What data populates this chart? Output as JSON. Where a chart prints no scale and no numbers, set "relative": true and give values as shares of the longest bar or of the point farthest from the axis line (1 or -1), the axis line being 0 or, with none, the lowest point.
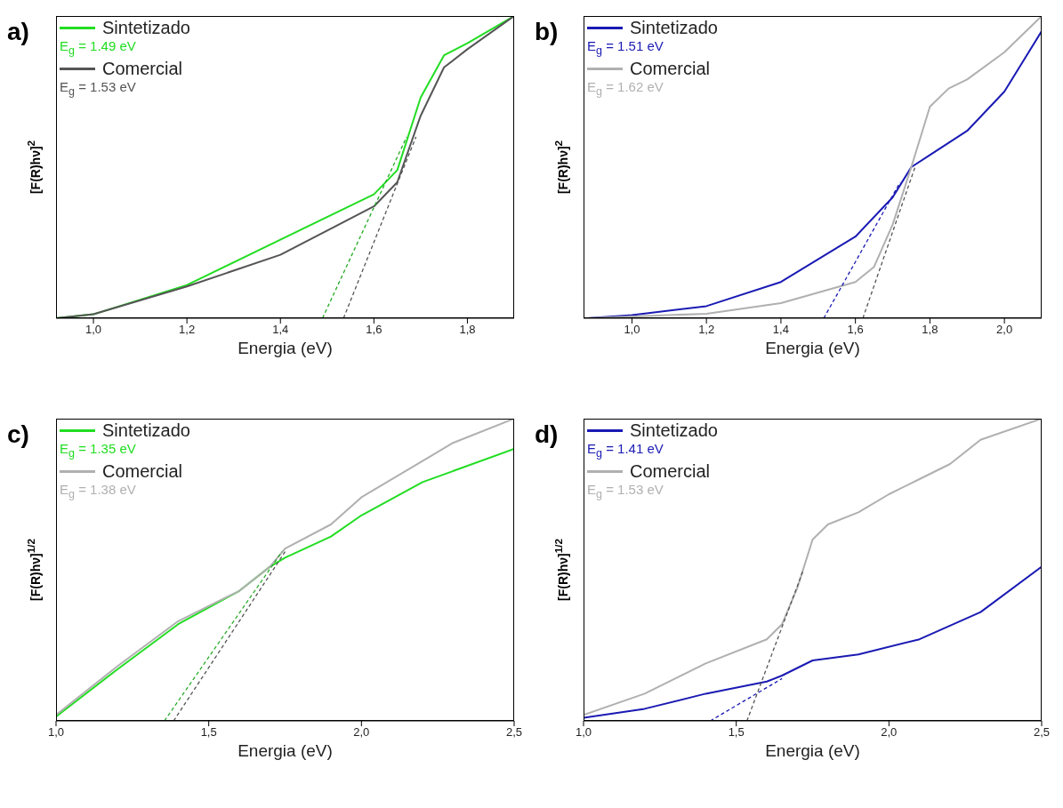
{
  "chart_data": [
    {
      "type": "line",
      "title": "a)",
      "xlabel": "Energia (eV)",
      "ylabel": "[F(R)hν]$^{2}$",
      "relative": true,
      "legend": "top left",
      "xlim": [
        0.92,
        1.9
      ],
      "xticks": [
        {
          "value": 1.0,
          "label": "1,0"
        },
        {
          "value": 1.2,
          "label": "1,2"
        },
        {
          "value": 1.4,
          "label": "1,4"
        },
        {
          "value": 1.6,
          "label": "1,6"
        },
        {
          "value": 1.8,
          "label": "1,8"
        }
      ],
      "annotations": [
        "E$_{g}$ = 1.49 eV",
        "E$_{g}$ =  1.53 eV"
      ],
      "series": [
        {
          "name": "Sintetizado",
          "color": "#22dd22",
          "x": [
            0.92,
            1.0,
            1.2,
            1.4,
            1.6,
            1.65,
            1.7,
            1.75,
            1.8,
            1.9
          ],
          "values": [
            0,
            0.013,
            0.11,
            0.26,
            0.41,
            0.49,
            0.73,
            0.87,
            0.91,
            1.0
          ]
        },
        {
          "name": "Comercial",
          "color": "#555555",
          "x": [
            0.92,
            1.0,
            1.2,
            1.4,
            1.6,
            1.65,
            1.7,
            1.75,
            1.8,
            1.9
          ],
          "values": [
            0,
            0.013,
            0.105,
            0.21,
            0.37,
            0.45,
            0.67,
            0.83,
            0.89,
            1.0
          ]
        },
        {
          "color": "#22aa22",
          "line_style": "dashed",
          "x": [
            1.49,
            1.67
          ],
          "values": [
            0,
            0.6
          ]
        },
        {
          "color": "#555555",
          "line_style": "dashed",
          "x": [
            1.535,
            1.69
          ],
          "values": [
            0,
            0.6
          ]
        }
      ]
    },
    {
      "type": "line",
      "title": "b)",
      "xlabel": "Energia (eV)",
      "ylabel": "[F(R)hν]$^{2}$",
      "relative": true,
      "legend": "top left",
      "xlim": [
        0.87,
        2.1
      ],
      "xticks": [
        {
          "value": 1.0,
          "label": "1,0"
        },
        {
          "value": 1.2,
          "label": "1,2"
        },
        {
          "value": 1.4,
          "label": "1,4"
        },
        {
          "value": 1.6,
          "label": "1,6"
        },
        {
          "value": 1.8,
          "label": "1,8"
        },
        {
          "value": 2.0,
          "label": "2,0"
        }
      ],
      "annotations": [
        "E$_{g}$ = 1.51 eV",
        "E$_{g}$ = 1.62 eV"
      ],
      "series": [
        {
          "name": "Sintetizado",
          "color": "#1a1ab4",
          "x": [
            0.88,
            1.0,
            1.2,
            1.4,
            1.6,
            1.7,
            1.75,
            1.8,
            1.9,
            2.0,
            2.1
          ],
          "values": [
            0,
            0.01,
            0.04,
            0.12,
            0.27,
            0.4,
            0.5,
            0.54,
            0.62,
            0.75,
            0.95
          ]
        },
        {
          "name": "Comercial",
          "color": "#b0b0b0",
          "x": [
            0.88,
            1.2,
            1.4,
            1.6,
            1.65,
            1.7,
            1.75,
            1.8,
            1.85,
            1.9,
            2.0,
            2.1
          ],
          "values": [
            0,
            0.015,
            0.05,
            0.12,
            0.17,
            0.31,
            0.5,
            0.7,
            0.76,
            0.79,
            0.88,
            1.0
          ]
        },
        {
          "color": "#1a1ab4",
          "line_style": "dashed",
          "x": [
            1.515,
            1.72
          ],
          "values": [
            0,
            0.45
          ]
        },
        {
          "color": "#555555",
          "line_style": "dashed",
          "x": [
            1.62,
            1.76
          ],
          "values": [
            0,
            0.5
          ]
        }
      ]
    },
    {
      "type": "line",
      "title": "c)",
      "xlabel": "Energia (eV)",
      "ylabel": "[F(R)hν]$^{1/2}$",
      "relative": true,
      "legend": "top left",
      "xlim": [
        1.0,
        2.5
      ],
      "xticks": [
        {
          "value": 1.0,
          "label": "1,0"
        },
        {
          "value": 1.5,
          "label": "1,5"
        },
        {
          "value": 2.0,
          "label": "2,0"
        },
        {
          "value": 2.5,
          "label": "2,5"
        }
      ],
      "annotations": [
        "E$_{g}$ = 1.35 eV",
        "E$_{g}$ = 1.38 eV"
      ],
      "series": [
        {
          "name": "Sintetizado",
          "color": "#22dd22",
          "x": [
            1.0,
            1.2,
            1.4,
            1.6,
            1.7,
            1.75,
            1.9,
            2.0,
            2.2,
            2.5
          ],
          "values": [
            0.014,
            0.17,
            0.32,
            0.43,
            0.51,
            0.54,
            0.61,
            0.68,
            0.79,
            0.9
          ]
        },
        {
          "name": "Comercial",
          "color": "#b0b0b0",
          "x": [
            1.0,
            1.2,
            1.4,
            1.6,
            1.7,
            1.75,
            1.9,
            2.0,
            2.2,
            2.3,
            2.5
          ],
          "values": [
            0.02,
            0.18,
            0.33,
            0.43,
            0.51,
            0.57,
            0.65,
            0.74,
            0.86,
            0.92,
            1.0
          ]
        },
        {
          "color": "#22aa22",
          "line_style": "dashed",
          "x": [
            1.355,
            1.74
          ],
          "values": [
            0,
            0.56
          ]
        },
        {
          "color": "#555555",
          "line_style": "dashed",
          "x": [
            1.385,
            1.75
          ],
          "values": [
            0,
            0.56
          ]
        }
      ]
    },
    {
      "type": "line",
      "title": "d)",
      "xlabel": "Energia (eV)",
      "ylabel": "[F(R)hν]$^{1/2}$",
      "relative": true,
      "legend": "top left",
      "xlim": [
        1.0,
        2.5
      ],
      "xticks": [
        {
          "value": 1.0,
          "label": "1,0"
        },
        {
          "value": 1.5,
          "label": "1,5"
        },
        {
          "value": 2.0,
          "label": "2,0"
        },
        {
          "value": 2.5,
          "label": "2,5"
        }
      ],
      "annotations": [
        "E$_{g}$ = 1.41 eV",
        "E$_{g}$ = 1.53 eV"
      ],
      "series": [
        {
          "name": "Sintetizado",
          "color": "#1a1ab4",
          "x": [
            1.0,
            1.2,
            1.4,
            1.6,
            1.65,
            1.75,
            1.9,
            2.1,
            2.3,
            2.5
          ],
          "values": [
            0.01,
            0.04,
            0.09,
            0.13,
            0.15,
            0.2,
            0.22,
            0.27,
            0.36,
            0.51
          ]
        },
        {
          "name": "Comercial",
          "color": "#b0b0b0",
          "x": [
            1.0,
            1.2,
            1.4,
            1.6,
            1.65,
            1.7,
            1.75,
            1.8,
            1.9,
            2.0,
            2.1,
            2.2,
            2.3,
            2.5
          ],
          "values": [
            0.02,
            0.09,
            0.19,
            0.27,
            0.32,
            0.44,
            0.6,
            0.65,
            0.69,
            0.75,
            0.8,
            0.85,
            0.93,
            1.0
          ]
        },
        {
          "color": "#1a1ab4",
          "line_style": "dashed",
          "x": [
            1.415,
            1.65
          ],
          "values": [
            0,
            0.14
          ]
        },
        {
          "color": "#555555",
          "line_style": "dashed",
          "x": [
            1.535,
            1.72
          ],
          "values": [
            0,
            0.5
          ]
        }
      ]
    }
  ]
}
